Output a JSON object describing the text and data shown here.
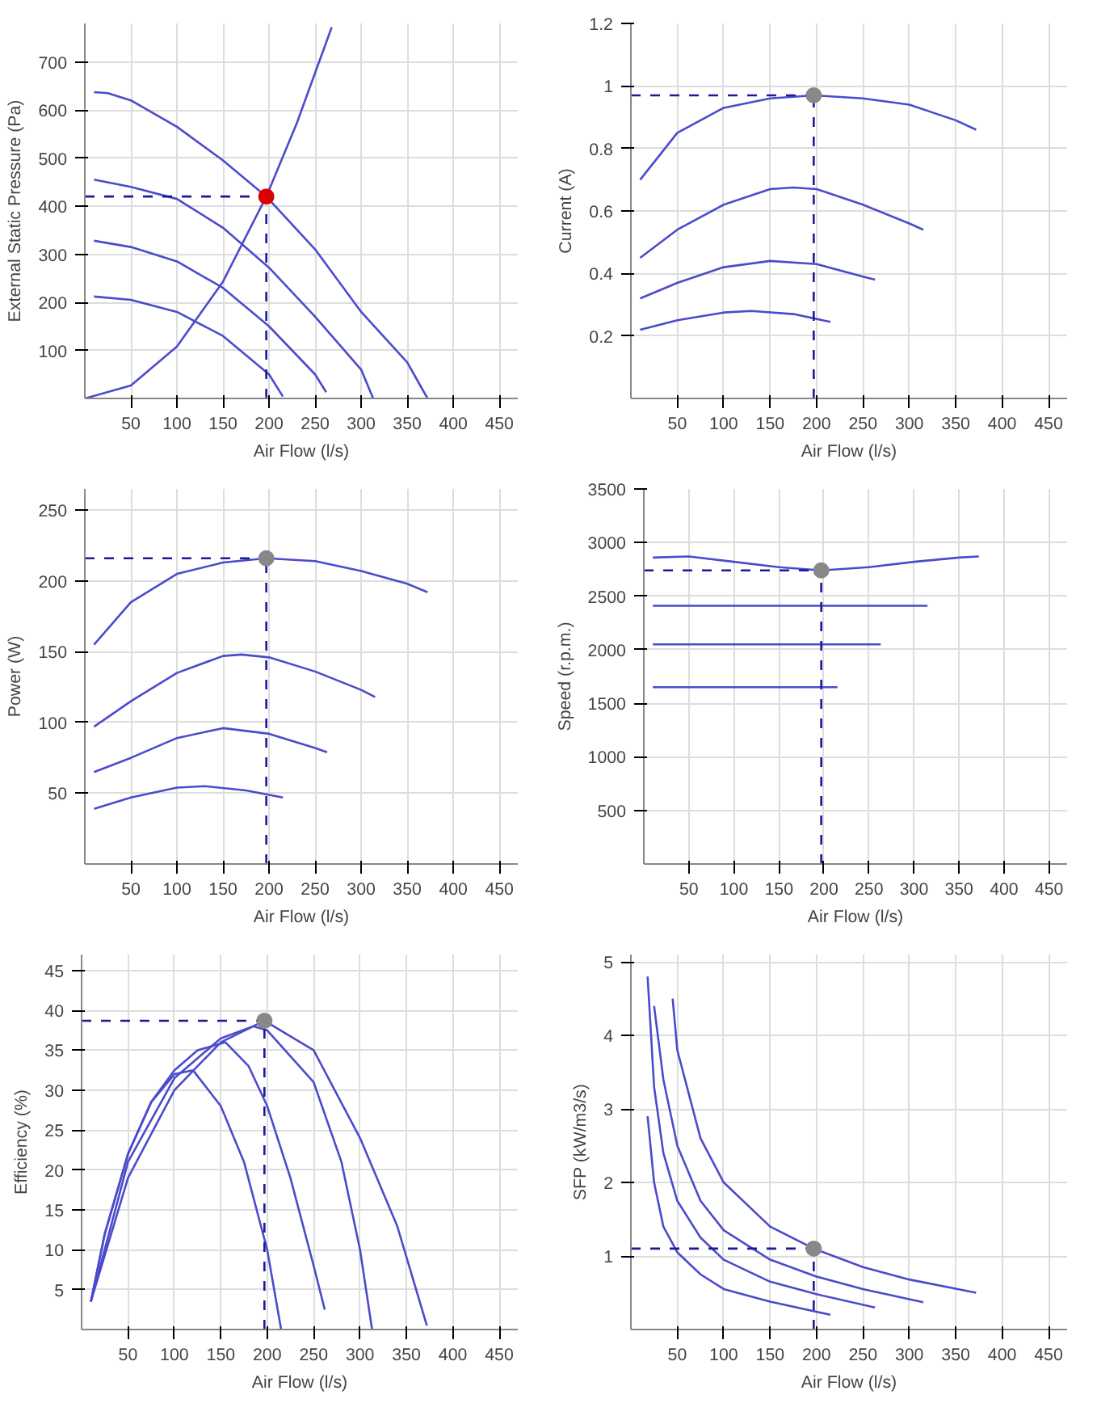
{
  "chart_data": [
    {
      "type": "line",
      "xlabel": "Air Flow (l/s)",
      "ylabel": "External Static Pressure (Pa)",
      "xlim": [
        0,
        470
      ],
      "ylim": [
        0,
        780
      ],
      "xticks": [
        50,
        100,
        150,
        200,
        250,
        300,
        350,
        400,
        450
      ],
      "yticks": [
        100,
        200,
        300,
        400,
        500,
        600,
        700
      ],
      "grid": true,
      "series": [
        {
          "color": "#4b4bcc",
          "x": [
            10,
            25,
            50,
            100,
            150,
            197,
            250,
            300,
            350,
            372
          ],
          "values": [
            637,
            635,
            620,
            565,
            495,
            420,
            310,
            180,
            75,
            0
          ]
        },
        {
          "color": "#4b4bcc",
          "x": [
            10,
            50,
            100,
            150,
            200,
            250,
            300,
            313
          ],
          "values": [
            455,
            440,
            415,
            355,
            272,
            170,
            60,
            0
          ]
        },
        {
          "color": "#4b4bcc",
          "x": [
            10,
            50,
            100,
            150,
            200,
            250,
            262
          ],
          "values": [
            328,
            315,
            285,
            230,
            150,
            50,
            13
          ]
        },
        {
          "color": "#4b4bcc",
          "x": [
            10,
            50,
            100,
            150,
            200,
            215
          ],
          "values": [
            212,
            205,
            180,
            130,
            50,
            4
          ]
        },
        {
          "color": "#4b4bcc",
          "x": [
            0,
            50,
            100,
            150,
            197,
            230,
            268
          ],
          "values": [
            0,
            27,
            108,
            243,
            420,
            572,
            772
          ]
        },
        {
          "type": "line",
          "line_style": "dashed",
          "color": "#1a1a99",
          "x": [
            0,
            197
          ],
          "values": [
            420,
            420
          ]
        },
        {
          "type": "line",
          "line_style": "dashed",
          "color": "#1a1a99",
          "x": [
            197,
            197
          ],
          "values": [
            0,
            420
          ]
        },
        {
          "type": "scatter",
          "marker": "circle",
          "color": "#dd0000",
          "x": [
            197
          ],
          "values": [
            420
          ]
        }
      ]
    },
    {
      "type": "line",
      "xlabel": "Air Flow (l/s)",
      "ylabel": "Current (A)",
      "xlim": [
        0,
        470
      ],
      "ylim": [
        0,
        1.2
      ],
      "xticks": [
        50,
        100,
        150,
        200,
        250,
        300,
        350,
        400,
        450
      ],
      "yticks": [
        0.2,
        0.4,
        0.6,
        0.8,
        1,
        1.2
      ],
      "grid": true,
      "series": [
        {
          "color": "#4b4bcc",
          "x": [
            10,
            50,
            100,
            150,
            197,
            250,
            300,
            350,
            372
          ],
          "values": [
            0.7,
            0.85,
            0.93,
            0.96,
            0.97,
            0.96,
            0.94,
            0.89,
            0.86
          ]
        },
        {
          "color": "#4b4bcc",
          "x": [
            10,
            50,
            100,
            150,
            175,
            200,
            250,
            300,
            315
          ],
          "values": [
            0.45,
            0.54,
            0.62,
            0.67,
            0.675,
            0.67,
            0.62,
            0.56,
            0.54
          ]
        },
        {
          "color": "#4b4bcc",
          "x": [
            10,
            50,
            100,
            150,
            200,
            250,
            263
          ],
          "values": [
            0.32,
            0.37,
            0.42,
            0.44,
            0.43,
            0.39,
            0.38
          ]
        },
        {
          "color": "#4b4bcc",
          "x": [
            10,
            50,
            100,
            130,
            175,
            215
          ],
          "values": [
            0.22,
            0.25,
            0.275,
            0.28,
            0.27,
            0.245
          ]
        },
        {
          "type": "line",
          "line_style": "dashed",
          "color": "#1a1a99",
          "x": [
            0,
            197
          ],
          "values": [
            0.97,
            0.97
          ]
        },
        {
          "type": "line",
          "line_style": "dashed",
          "color": "#1a1a99",
          "x": [
            197,
            197
          ],
          "values": [
            0,
            0.97
          ]
        },
        {
          "type": "scatter",
          "marker": "circle",
          "color": "#888888",
          "x": [
            197
          ],
          "values": [
            0.97
          ]
        }
      ]
    },
    {
      "type": "line",
      "xlabel": "Air Flow (l/s)",
      "ylabel": "Power (W)",
      "xlim": [
        0,
        470
      ],
      "ylim": [
        0,
        265
      ],
      "xticks": [
        50,
        100,
        150,
        200,
        250,
        300,
        350,
        400,
        450
      ],
      "yticks": [
        50,
        100,
        150,
        200,
        250
      ],
      "grid": true,
      "series": [
        {
          "color": "#4b4bcc",
          "x": [
            10,
            50,
            100,
            150,
            197,
            250,
            300,
            350,
            372
          ],
          "values": [
            155,
            185,
            205,
            213,
            216,
            214,
            207,
            198,
            192
          ]
        },
        {
          "color": "#4b4bcc",
          "x": [
            10,
            50,
            100,
            150,
            170,
            200,
            250,
            300,
            315
          ],
          "values": [
            97,
            115,
            135,
            147,
            148,
            146,
            136,
            123,
            118
          ]
        },
        {
          "color": "#4b4bcc",
          "x": [
            10,
            50,
            100,
            150,
            200,
            250,
            263
          ],
          "values": [
            65,
            75,
            89,
            96,
            92,
            82,
            79
          ]
        },
        {
          "color": "#4b4bcc",
          "x": [
            10,
            50,
            100,
            130,
            175,
            215
          ],
          "values": [
            39,
            47,
            54,
            55,
            52,
            47
          ]
        },
        {
          "type": "line",
          "line_style": "dashed",
          "color": "#1a1a99",
          "x": [
            0,
            197
          ],
          "values": [
            216,
            216
          ]
        },
        {
          "type": "line",
          "line_style": "dashed",
          "color": "#1a1a99",
          "x": [
            197,
            197
          ],
          "values": [
            0,
            216
          ]
        },
        {
          "type": "scatter",
          "marker": "circle",
          "color": "#888888",
          "x": [
            197
          ],
          "values": [
            216
          ]
        }
      ]
    },
    {
      "type": "line",
      "xlabel": "Air Flow (l/s)",
      "ylabel": "Speed (r.p.m.)",
      "xlim": [
        0,
        470
      ],
      "ylim": [
        0,
        3500
      ],
      "xticks": [
        50,
        100,
        150,
        200,
        250,
        300,
        350,
        400,
        450
      ],
      "yticks": [
        500,
        1000,
        1500,
        2000,
        2500,
        3000,
        3500
      ],
      "grid": true,
      "series": [
        {
          "color": "#4b4bcc",
          "x": [
            10,
            50,
            100,
            150,
            197,
            250,
            300,
            350,
            372
          ],
          "values": [
            2860,
            2870,
            2820,
            2770,
            2740,
            2770,
            2820,
            2860,
            2870
          ]
        },
        {
          "color": "#4b4bcc",
          "x": [
            10,
            315
          ],
          "values": [
            2410,
            2410
          ]
        },
        {
          "color": "#4b4bcc",
          "x": [
            10,
            263
          ],
          "values": [
            2050,
            2050
          ]
        },
        {
          "color": "#4b4bcc",
          "x": [
            10,
            215
          ],
          "values": [
            1650,
            1650
          ]
        },
        {
          "type": "line",
          "line_style": "dashed",
          "color": "#1a1a99",
          "x": [
            0,
            197
          ],
          "values": [
            2740,
            2740
          ]
        },
        {
          "type": "line",
          "line_style": "dashed",
          "color": "#1a1a99",
          "x": [
            197,
            197
          ],
          "values": [
            0,
            2740
          ]
        },
        {
          "type": "scatter",
          "marker": "circle",
          "color": "#888888",
          "x": [
            197
          ],
          "values": [
            2740
          ]
        }
      ]
    },
    {
      "type": "line",
      "xlabel": "Air Flow (l/s)",
      "ylabel": "Efficiency (%)",
      "xlim": [
        0,
        470
      ],
      "ylim": [
        0,
        47
      ],
      "xticks": [
        50,
        100,
        150,
        200,
        250,
        300,
        350,
        400,
        450
      ],
      "yticks": [
        5,
        10,
        15,
        20,
        25,
        30,
        35,
        40,
        45
      ],
      "grid": true,
      "series": [
        {
          "color": "#4b4bcc",
          "x": [
            10,
            25,
            50,
            75,
            100,
            120,
            150,
            175,
            200,
            215
          ],
          "values": [
            3.5,
            12,
            22,
            28.5,
            32,
            32.5,
            28,
            21,
            10,
            0
          ]
        },
        {
          "color": "#4b4bcc",
          "x": [
            10,
            25,
            50,
            75,
            100,
            125,
            155,
            180,
            200,
            225,
            250,
            262
          ],
          "values": [
            3.5,
            12,
            22,
            28.5,
            32.5,
            35,
            36,
            33,
            28,
            19,
            8,
            2.5
          ]
        },
        {
          "color": "#4b4bcc",
          "x": [
            10,
            50,
            100,
            150,
            185,
            200,
            250,
            280,
            300,
            313
          ],
          "values": [
            3.5,
            21,
            31.5,
            36.5,
            38,
            37.5,
            31,
            21,
            10,
            0
          ]
        },
        {
          "color": "#4b4bcc",
          "x": [
            10,
            50,
            100,
            150,
            197,
            250,
            300,
            340,
            372
          ],
          "values": [
            3.5,
            19,
            30,
            36,
            38.7,
            35,
            24,
            13,
            0.5
          ]
        },
        {
          "type": "line",
          "line_style": "dashed",
          "color": "#1a1a99",
          "x": [
            0,
            197
          ],
          "values": [
            38.7,
            38.7
          ]
        },
        {
          "type": "line",
          "line_style": "dashed",
          "color": "#1a1a99",
          "x": [
            197,
            197
          ],
          "values": [
            0,
            38.7
          ]
        },
        {
          "type": "scatter",
          "marker": "circle",
          "color": "#888888",
          "x": [
            197
          ],
          "values": [
            38.7
          ]
        }
      ]
    },
    {
      "type": "line",
      "xlabel": "Air Flow (l/s)",
      "ylabel": "SFP (kW/m3/s)",
      "xlim": [
        0,
        470
      ],
      "ylim": [
        0,
        5.1
      ],
      "xticks": [
        50,
        100,
        150,
        200,
        250,
        300,
        350,
        400,
        450
      ],
      "yticks": [
        1,
        2,
        3,
        4,
        5
      ],
      "grid": true,
      "series": [
        {
          "color": "#4b4bcc",
          "x": [
            45,
            50,
            75,
            100,
            150,
            197,
            250,
            300,
            372
          ],
          "values": [
            4.5,
            3.8,
            2.6,
            2.0,
            1.4,
            1.1,
            0.85,
            0.68,
            0.5
          ]
        },
        {
          "color": "#4b4bcc",
          "x": [
            25,
            35,
            50,
            75,
            100,
            150,
            200,
            250,
            315
          ],
          "values": [
            4.4,
            3.4,
            2.5,
            1.75,
            1.35,
            0.95,
            0.72,
            0.55,
            0.37
          ]
        },
        {
          "color": "#4b4bcc",
          "x": [
            18,
            25,
            35,
            50,
            75,
            100,
            150,
            200,
            263
          ],
          "values": [
            4.8,
            3.3,
            2.4,
            1.75,
            1.25,
            0.95,
            0.65,
            0.48,
            0.3
          ]
        },
        {
          "color": "#4b4bcc",
          "x": [
            18,
            25,
            35,
            50,
            75,
            100,
            150,
            215
          ],
          "values": [
            2.9,
            2.0,
            1.4,
            1.05,
            0.75,
            0.55,
            0.38,
            0.2
          ]
        },
        {
          "type": "line",
          "line_style": "dashed",
          "color": "#1a1a99",
          "x": [
            0,
            197
          ],
          "values": [
            1.1,
            1.1
          ]
        },
        {
          "type": "line",
          "line_style": "dashed",
          "color": "#1a1a99",
          "x": [
            197,
            197
          ],
          "values": [
            0,
            1.1
          ]
        },
        {
          "type": "scatter",
          "marker": "circle",
          "color": "#888888",
          "x": [
            197
          ],
          "values": [
            1.1
          ]
        }
      ]
    }
  ]
}
